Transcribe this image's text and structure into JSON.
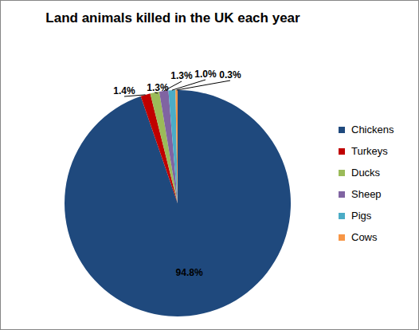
{
  "chart_data": {
    "type": "pie",
    "title": "Land animals killed in the UK each year",
    "categories": [
      "Chickens",
      "Turkeys",
      "Ducks",
      "Sheep",
      "Pigs",
      "Cows"
    ],
    "values": [
      94.8,
      1.4,
      1.3,
      1.3,
      1.0,
      0.3
    ],
    "value_labels": [
      "94.8%",
      "1.4%",
      "1.3%",
      "1.3%",
      "1.0%",
      "0.3%"
    ],
    "colors": [
      "#1F497D",
      "#C00000",
      "#9BBB59",
      "#8064A2",
      "#4BACC6",
      "#F79646"
    ],
    "data_labels": true,
    "legend": "right"
  }
}
